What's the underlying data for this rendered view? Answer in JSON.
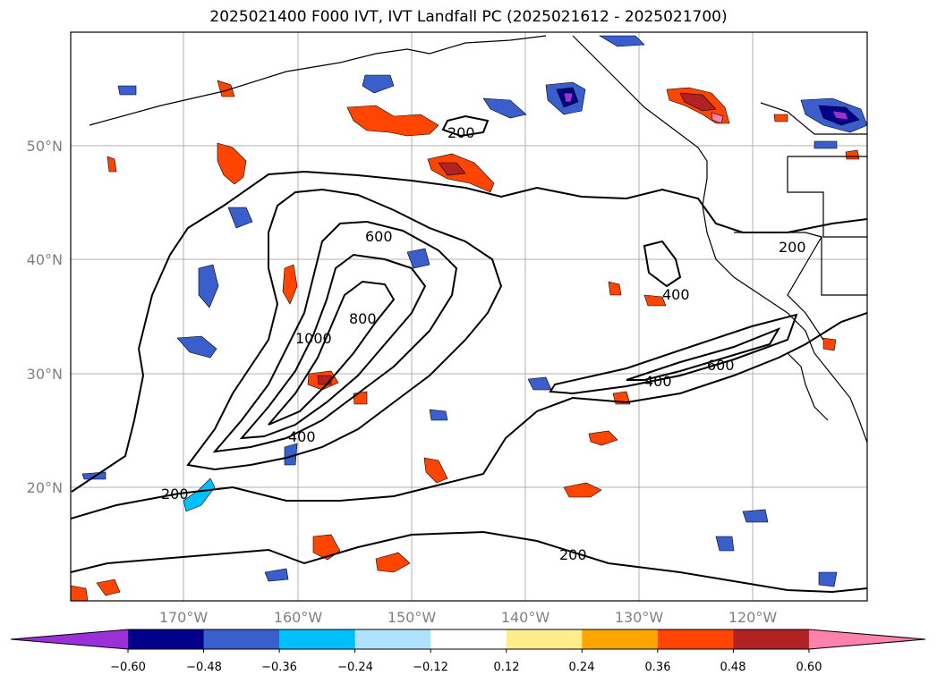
{
  "title": "2025021400 F000 IVT, IVT Landfall PC (2025021612 - 2025021700)",
  "map": {
    "lat_labels": [
      "50°N",
      "40°N",
      "30°N",
      "20°N"
    ],
    "lon_labels": [
      "170°W",
      "160°W",
      "150°W",
      "140°W",
      "130°W",
      "120°W"
    ],
    "contour_levels": [
      200,
      400,
      600,
      800,
      1000
    ],
    "contour_labels": [
      "200",
      "200",
      "200",
      "200",
      "600",
      "800",
      "1000",
      "400",
      "400",
      "400",
      "600"
    ],
    "colors": {
      "contour_line": "#000000",
      "grid": "#b0b0b0",
      "coastline": "#000000",
      "axis_tick_label": "#808080"
    }
  },
  "colorbar": {
    "ticks": [
      "−0.60",
      "−0.48",
      "−0.36",
      "−0.24",
      "−0.12",
      "0.12",
      "0.24",
      "0.36",
      "0.48",
      "0.60"
    ],
    "colors": [
      "#9b30d9",
      "#00008b",
      "#3a5fcd",
      "#00bfff",
      "#b0e2ff",
      "#ffffff",
      "#ffec8b",
      "#ffa500",
      "#ff4500",
      "#b22222",
      "#ff82ab"
    ],
    "extend": "both"
  }
}
